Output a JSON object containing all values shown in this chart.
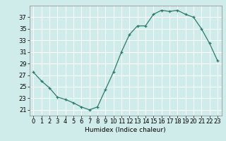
{
  "x": [
    0,
    1,
    2,
    3,
    4,
    5,
    6,
    7,
    8,
    9,
    10,
    11,
    12,
    13,
    14,
    15,
    16,
    17,
    18,
    19,
    20,
    21,
    22,
    23
  ],
  "y": [
    27.5,
    26.0,
    24.8,
    23.2,
    22.8,
    22.2,
    21.5,
    21.0,
    21.5,
    24.5,
    27.5,
    31.0,
    34.0,
    35.5,
    35.5,
    37.5,
    38.2,
    38.0,
    38.2,
    37.5,
    37.0,
    35.0,
    32.5,
    29.5
  ],
  "xlabel": "Humidex (Indice chaleur)",
  "ylabel": "",
  "xlim": [
    -0.5,
    23.5
  ],
  "ylim": [
    20.0,
    39.0
  ],
  "yticks": [
    21,
    23,
    25,
    27,
    29,
    31,
    33,
    35,
    37
  ],
  "xticks": [
    0,
    1,
    2,
    3,
    4,
    5,
    6,
    7,
    8,
    9,
    10,
    11,
    12,
    13,
    14,
    15,
    16,
    17,
    18,
    19,
    20,
    21,
    22,
    23
  ],
  "line_color": "#2d7a6a",
  "marker_color": "#2d7a6a",
  "bg_color": "#d0ecea",
  "grid_color": "#ffffff",
  "label_fontsize": 6.5,
  "tick_fontsize": 6.0
}
